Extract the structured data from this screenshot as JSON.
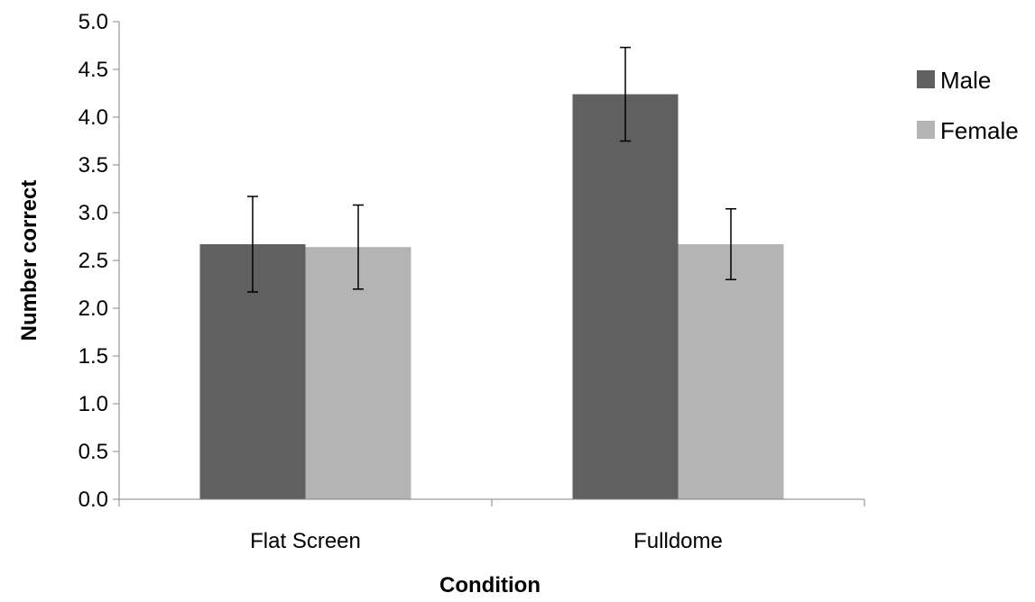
{
  "chart_data": {
    "type": "bar",
    "title": "",
    "xlabel": "Condition",
    "ylabel": "Number correct",
    "categories": [
      "Flat Screen",
      "Fulldome"
    ],
    "series": [
      {
        "name": "Male",
        "color": "#606060",
        "values": [
          2.67,
          4.24
        ],
        "error": [
          0.5,
          0.49
        ]
      },
      {
        "name": "Female",
        "color": "#b4b4b4",
        "values": [
          2.64,
          2.67
        ],
        "error": [
          0.44,
          0.37
        ]
      }
    ],
    "ylim": [
      0,
      5.0
    ],
    "yticks": [
      "0.0",
      "0.5",
      "1.0",
      "1.5",
      "2.0",
      "2.5",
      "3.0",
      "3.5",
      "4.0",
      "4.5",
      "5.0"
    ],
    "grid": false,
    "legend_position": "right"
  }
}
